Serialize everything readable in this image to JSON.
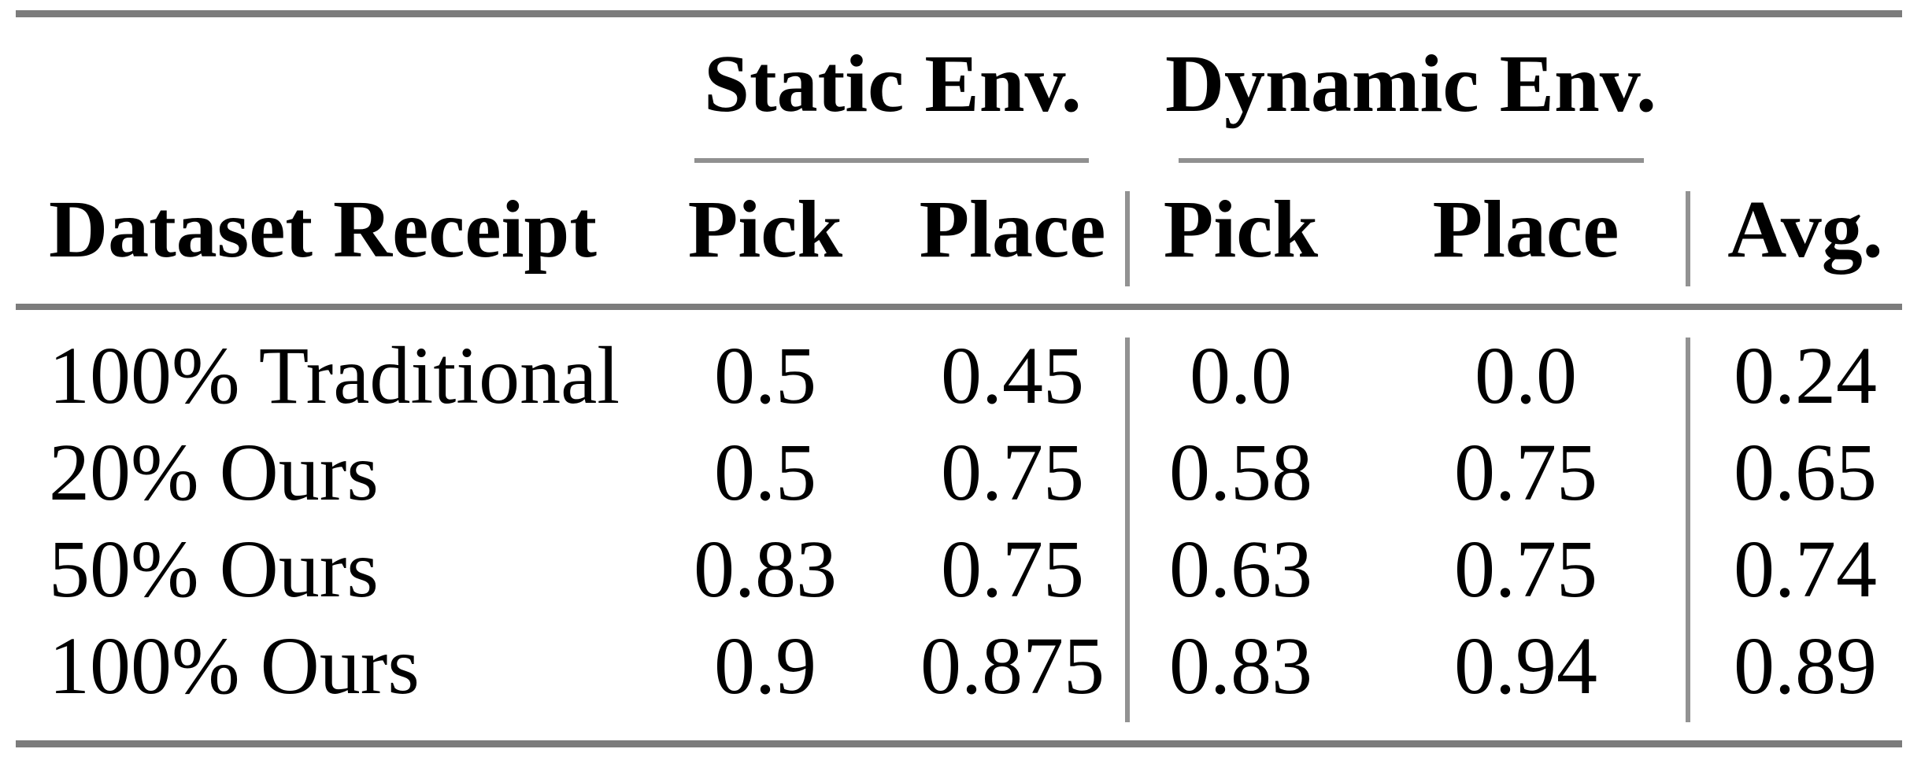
{
  "table": {
    "column_groups": [
      {
        "label": "Static Env.",
        "columns": [
          "Pick",
          "Place"
        ]
      },
      {
        "label": "Dynamic Env.",
        "columns": [
          "Pick",
          "Place"
        ]
      }
    ],
    "headers": {
      "dataset": "Dataset Receipt",
      "static_pick": "Pick",
      "static_place": "Place",
      "dynamic_pick": "Pick",
      "dynamic_place": "Place",
      "avg": "Avg."
    },
    "rows": [
      {
        "label": "100% Traditional",
        "values": [
          "0.5",
          "0.45",
          "0.0",
          "0.0",
          "0.24"
        ]
      },
      {
        "label": "20% Ours",
        "values": [
          "0.5",
          "0.75",
          "0.58",
          "0.75",
          "0.65"
        ]
      },
      {
        "label": "50% Ours",
        "values": [
          "0.83",
          "0.75",
          "0.63",
          "0.75",
          "0.74"
        ]
      },
      {
        "label": "100% Ours",
        "values": [
          "0.9",
          "0.875",
          "0.83",
          "0.94",
          "0.89"
        ]
      }
    ],
    "colors": {
      "text": "#000000",
      "heavy_rule": "#7c7c7c",
      "light_rule": "#909090"
    }
  },
  "chart_data": {
    "type": "table",
    "columns": [
      "Dataset Receipt",
      "Static Env. Pick",
      "Static Env. Place",
      "Dynamic Env. Pick",
      "Dynamic Env. Place",
      "Avg."
    ],
    "rows": [
      [
        "100% Traditional",
        0.5,
        0.45,
        0.0,
        0.0,
        0.24
      ],
      [
        "20% Ours",
        0.5,
        0.75,
        0.58,
        0.75,
        0.65
      ],
      [
        "50% Ours",
        0.83,
        0.75,
        0.63,
        0.75,
        0.74
      ],
      [
        "100% Ours",
        0.9,
        0.875,
        0.83,
        0.94,
        0.89
      ]
    ]
  }
}
